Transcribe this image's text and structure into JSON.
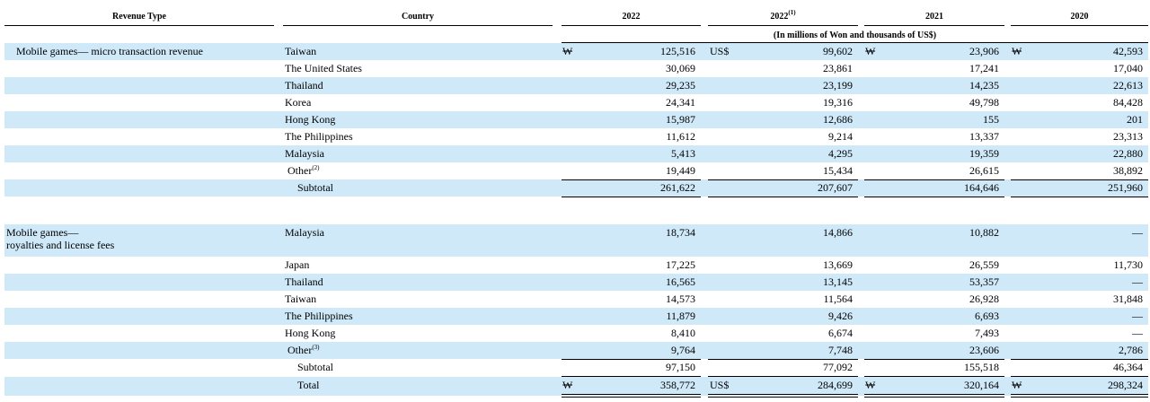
{
  "header": {
    "columns": [
      "Revenue Type",
      "Country",
      "2022",
      {
        "text": "2022",
        "note": "(1)"
      },
      "2021",
      "2020"
    ],
    "unit_note": "(In millions of Won and thousands of US$)"
  },
  "sections": [
    {
      "revenue_type": [
        "Mobile games— micro transaction revenue"
      ],
      "rows": [
        {
          "country": "Taiwan",
          "currency": [
            "₩",
            "US$",
            "₩",
            "₩"
          ],
          "values": [
            "125,516",
            "99,602",
            "23,906",
            "42,593"
          ]
        },
        {
          "country": "The United States",
          "values": [
            "30,069",
            "23,861",
            "17,241",
            "17,040"
          ]
        },
        {
          "country": "Thailand",
          "values": [
            "29,235",
            "23,199",
            "14,235",
            "22,613"
          ]
        },
        {
          "country": "Korea",
          "values": [
            "24,341",
            "19,316",
            "49,798",
            "84,428"
          ]
        },
        {
          "country": "Hong Kong",
          "values": [
            "15,987",
            "12,686",
            "155",
            "201"
          ]
        },
        {
          "country": "The Philippines",
          "values": [
            "11,612",
            "9,214",
            "13,337",
            "23,313"
          ]
        },
        {
          "country": "Malaysia",
          "values": [
            "5,413",
            "4,295",
            "19,359",
            "22,880"
          ]
        },
        {
          "country": "Other",
          "note": "(2)",
          "values": [
            "19,449",
            "15,434",
            "26,615",
            "38,892"
          ]
        },
        {
          "country": "Subtotal",
          "values": [
            "261,622",
            "207,607",
            "164,646",
            "251,960"
          ]
        }
      ]
    },
    {
      "revenue_type": [
        "Mobile games—",
        "royalties and license fees"
      ],
      "rows": [
        {
          "country": "Malaysia",
          "values": [
            "18,734",
            "14,866",
            "10,882",
            "—"
          ]
        },
        {
          "country": "Japan",
          "values": [
            "17,225",
            "13,669",
            "26,559",
            "11,730"
          ]
        },
        {
          "country": "Thailand",
          "values": [
            "16,565",
            "13,145",
            "53,357",
            "—"
          ]
        },
        {
          "country": "Taiwan",
          "values": [
            "14,573",
            "11,564",
            "26,928",
            "31,848"
          ]
        },
        {
          "country": "The Philippines",
          "values": [
            "11,879",
            "9,426",
            "6,693",
            "—"
          ]
        },
        {
          "country": "Hong Kong",
          "values": [
            "8,410",
            "6,674",
            "7,493",
            "—"
          ]
        },
        {
          "country": "Other",
          "note": "(3)",
          "values": [
            "9,764",
            "7,748",
            "23,606",
            "2,786"
          ]
        },
        {
          "country": "Subtotal",
          "values": [
            "97,150",
            "77,092",
            "155,518",
            "46,364"
          ]
        }
      ]
    }
  ],
  "total": {
    "country": "Total",
    "currency": [
      "₩",
      "US$",
      "₩",
      "₩"
    ],
    "values": [
      "358,772",
      "284,699",
      "320,164",
      "298,324"
    ]
  }
}
